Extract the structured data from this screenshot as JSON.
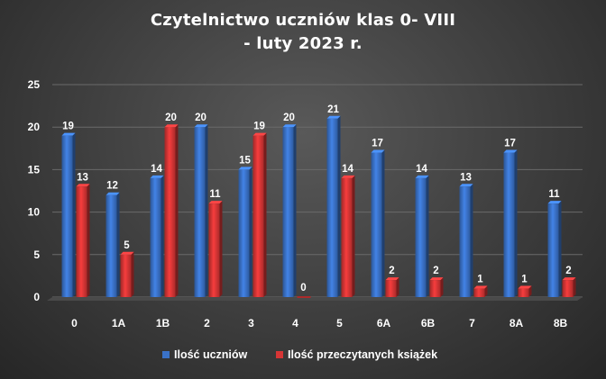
{
  "chart_data": {
    "type": "bar",
    "title_line1": "Czytelnictwo  uczniów  klas  0- VIII",
    "title_line2": "- luty  2023  r.",
    "categories": [
      "0",
      "1A",
      "1B",
      "2",
      "3",
      "4",
      "5",
      "6A",
      "6B",
      "7",
      "8A",
      "8B"
    ],
    "series": [
      {
        "name": "Ilość uczniów",
        "color": "#3a72c8",
        "values": [
          19,
          12,
          14,
          20,
          15,
          20,
          21,
          17,
          14,
          13,
          17,
          11
        ]
      },
      {
        "name": "Ilość przeczytanych książek",
        "color": "#d63535",
        "values": [
          13,
          5,
          20,
          11,
          19,
          0,
          14,
          2,
          2,
          1,
          1,
          2
        ]
      }
    ],
    "ylim": [
      0,
      25
    ],
    "yticks": [
      0,
      5,
      10,
      15,
      20,
      25
    ],
    "grid": true,
    "legend_position": "bottom",
    "data_labels": true
  }
}
